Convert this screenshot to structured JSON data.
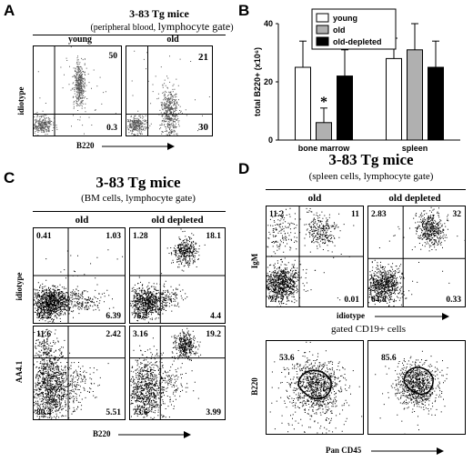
{
  "panels": {
    "A": {
      "label": "A",
      "title": "3-83 Tg mice",
      "subtitle_prefix": "(peripheral blood, ",
      "subtitle_gate": "lymphocyte gate",
      "subtitle_suffix": ")",
      "col_young": "young",
      "col_old": "old",
      "ylabel": "idiotype",
      "xlabel": "B220",
      "young": {
        "ur": "50",
        "lr": "0.3"
      },
      "old": {
        "ur": "21",
        "lr": "30"
      }
    },
    "B": {
      "label": "B",
      "legend": [
        "young",
        "old",
        "old-depleted"
      ]
    },
    "C": {
      "label": "C",
      "title": "3-83 Tg mice",
      "subtitle": "(BM cells, lymphocyte gate)",
      "col_old": "old",
      "col_depleted": "old depleted",
      "ylabel_top": "idiotype",
      "ylabel_bottom": "AA4.1",
      "xlabel": "B220",
      "old_top": {
        "ul": "0.41",
        "ur": "1.03",
        "ll": "92.2",
        "lr": "6.39"
      },
      "dep_top": {
        "ul": "1.28",
        "ur": "18.1",
        "ll": "76.2",
        "lr": "4.4"
      },
      "old_bot": {
        "ul": "11.6",
        "ur": "2.42",
        "ll": "80.4",
        "lr": "5.51"
      },
      "dep_bot": {
        "ul": "3.16",
        "ur": "19.2",
        "ll": "73.6",
        "lr": "3.99"
      }
    },
    "D": {
      "label": "D",
      "title": "3-83 Tg mice",
      "subtitle": "(spleen cells, lymphocyte gate)",
      "col_old": "old",
      "col_depleted": "old depleted",
      "ylabel_top": "IgM",
      "xlabel_top": "idiotype",
      "gated_label": "gated CD19+ cells",
      "ylabel_bottom": "B220",
      "xlabel_bottom": "Pan CD45",
      "old_top": {
        "ul": "11.2",
        "ur": "11",
        "ll": "77.7",
        "lr": "0.01"
      },
      "dep_top": {
        "ul": "2.83",
        "ur": "32",
        "ll": "64.8",
        "lr": "0.33"
      },
      "old_bot": {
        "val": "53.6"
      },
      "dep_bot": {
        "val": "85.6"
      }
    }
  },
  "chart_data": {
    "type": "bar",
    "categories": [
      "bone marrow",
      "spleen"
    ],
    "series": [
      {
        "name": "young",
        "values": [
          25,
          28
        ],
        "errors": [
          9,
          7
        ],
        "color": "#ffffff"
      },
      {
        "name": "old",
        "values": [
          6,
          31
        ],
        "errors": [
          5,
          9
        ],
        "color": "#b0b0b0"
      },
      {
        "name": "old-depleted",
        "values": [
          22,
          25
        ],
        "errors": [
          9,
          9
        ],
        "color": "#000000"
      }
    ],
    "ylabel": "total B220+ (x10⁶)",
    "yticks": [
      "0",
      "20",
      "40"
    ],
    "ylim": [
      0,
      40
    ],
    "annotation": "*",
    "colors": {
      "young": "#ffffff",
      "old": "#b0b0b0",
      "old-depleted": "#000000"
    }
  }
}
